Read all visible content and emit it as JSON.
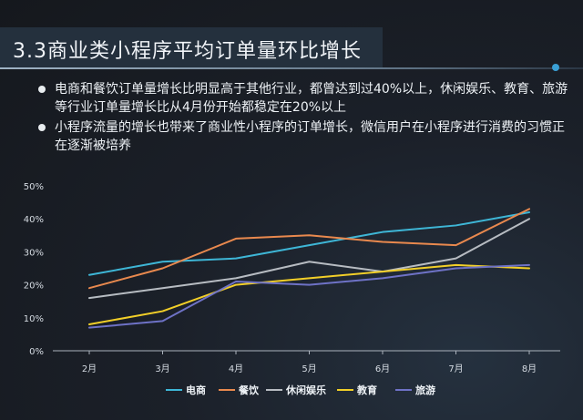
{
  "header": {
    "title": "3.3商业类小程序平均订单量环比增长"
  },
  "bullets": [
    "电商和餐饮订单量增长比明显高于其他行业，都曾达到过40%以上，休闲娱乐、教育、旅游等行业订单量增长比从4月份开始都稳定在20%以上",
    "小程序流量的增长也带来了商业性小程序的订单增长，微信用户在小程序进行消费的习惯正在逐渐被培养"
  ],
  "colors": {
    "ecommerce": "#3eb6d6",
    "catering": "#e9894e",
    "leisure": "#b7bcc2",
    "education": "#f2cf28",
    "travel": "#6e72c6"
  },
  "chart_data": {
    "type": "line",
    "categories": [
      "2月",
      "3月",
      "4月",
      "5月",
      "6月",
      "7月",
      "8月"
    ],
    "ylim": [
      0,
      50
    ],
    "yticks": [
      "0%",
      "10%",
      "20%",
      "30%",
      "40%",
      "50%"
    ],
    "series": [
      {
        "name": "电商",
        "color_key": "ecommerce",
        "values": [
          23,
          27,
          28,
          32,
          36,
          38,
          42
        ]
      },
      {
        "name": "餐饮",
        "color_key": "catering",
        "values": [
          19,
          25,
          34,
          35,
          33,
          32,
          43
        ]
      },
      {
        "name": "休闲娱乐",
        "color_key": "leisure",
        "values": [
          16,
          19,
          22,
          27,
          24,
          28,
          40
        ]
      },
      {
        "name": "教育",
        "color_key": "education",
        "values": [
          8,
          12,
          20,
          22,
          24,
          26,
          25
        ]
      },
      {
        "name": "旅游",
        "color_key": "travel",
        "values": [
          7,
          9,
          21,
          20,
          22,
          25,
          26
        ]
      }
    ]
  }
}
